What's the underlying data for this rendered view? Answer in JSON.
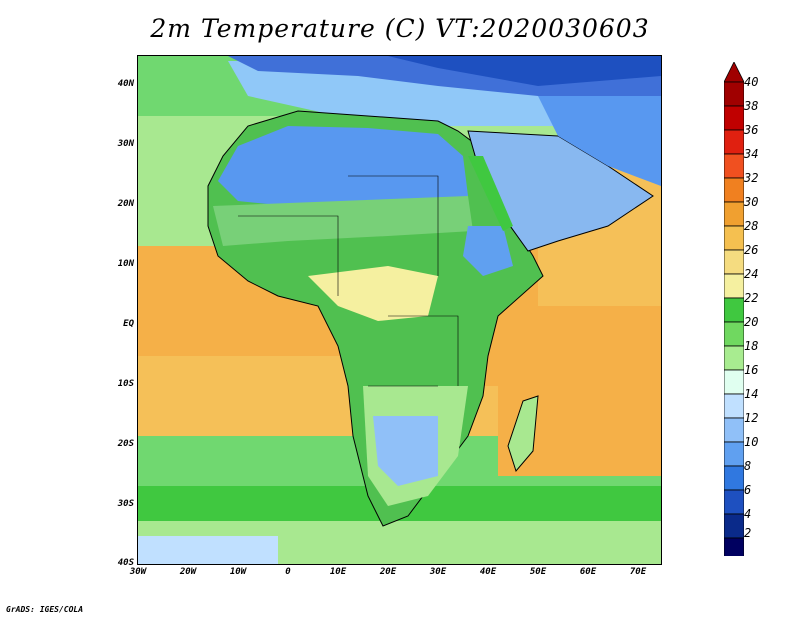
{
  "title": "2m Temperature (C) VT:2020030603",
  "credit": "GrADS: IGES/COLA",
  "latitude_ticks": [
    "40N",
    "30N",
    "20N",
    "10N",
    "EQ",
    "10S",
    "20S",
    "30S",
    "40S"
  ],
  "longitude_ticks": [
    "30W",
    "20W",
    "10W",
    "0",
    "10E",
    "20E",
    "30E",
    "40E",
    "50E",
    "60E",
    "70E"
  ],
  "colorbar": {
    "labels": [
      "40",
      "38",
      "36",
      "34",
      "32",
      "30",
      "28",
      "26",
      "24",
      "22",
      "20",
      "18",
      "16",
      "14",
      "12",
      "10",
      "8",
      "6",
      "4",
      "2"
    ],
    "colors": [
      "#a00000",
      "#c00000",
      "#e02010",
      "#f05020",
      "#f08020",
      "#f0a030",
      "#f5c050",
      "#f5dc80",
      "#f5f0a0",
      "#40c840",
      "#70d860",
      "#a8ec90",
      "#e0fff0",
      "#c0e0ff",
      "#90c0f8",
      "#60a0f0",
      "#3078e0",
      "#1e50c0",
      "#0a2a8a",
      "#000060"
    ],
    "low_extension": "#e8e0ff",
    "high_extension": "#a00000"
  },
  "map": {
    "ocean_colors": {
      "tropical": "#f5b048",
      "subtropical": "#f5c058",
      "temperate": "#80e080",
      "south_cool": "#40c840",
      "med": "#90c8f8"
    },
    "land_colors": {
      "sahara": "#5898f0",
      "sahel": "#78d078",
      "equatorial": "#50c050",
      "southern": "#98dca0",
      "kalahari": "#60a8f0",
      "arabia": "#88b8f0",
      "med_land": "#4070d8"
    }
  }
}
